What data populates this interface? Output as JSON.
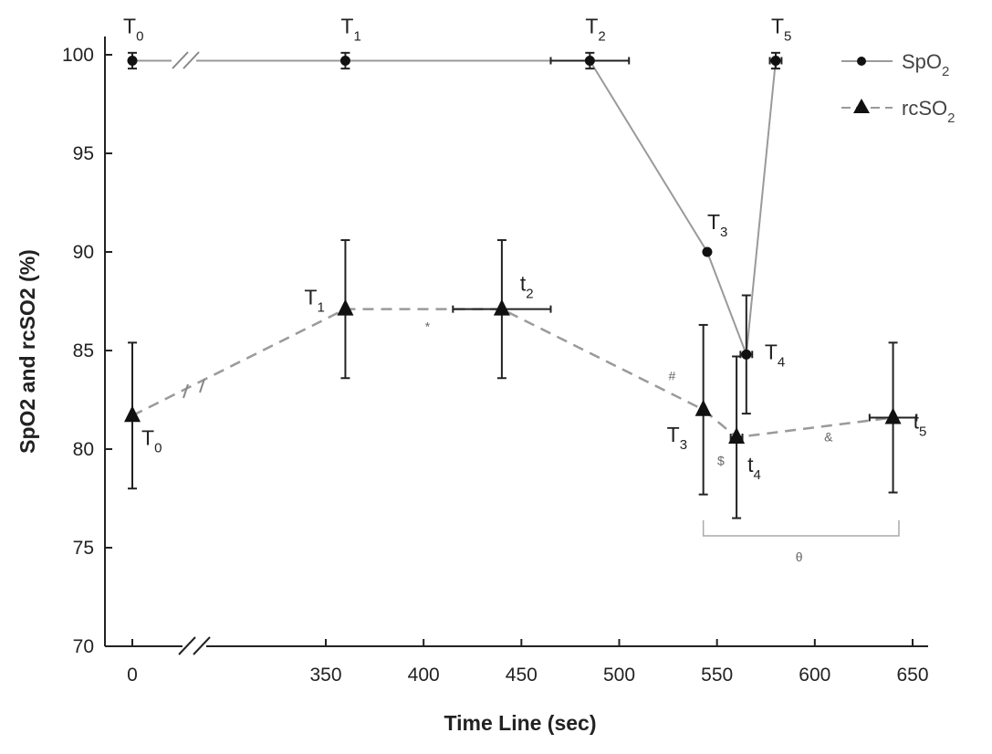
{
  "chart_data": {
    "type": "line",
    "xlabel": "Time Line (sec)",
    "ylabel": "SpO2 and rcSO2 (%)",
    "ylim": [
      70,
      100
    ],
    "xlim": [
      0,
      650
    ],
    "x_axis_break": "between 0 and 350",
    "y_ticks": [
      70,
      75,
      80,
      85,
      90,
      95,
      100
    ],
    "x_ticks": [
      0,
      350,
      400,
      450,
      500,
      550,
      600,
      650
    ],
    "x_tick_labels": [
      "0",
      "350",
      "400",
      "450",
      "500",
      "550",
      "600",
      "650"
    ],
    "legend_position": "top-right",
    "series": [
      {
        "name": "SpO2",
        "marker": "circle",
        "line_style": "solid",
        "color": "#9a9a9a",
        "points": [
          {
            "label": "T0",
            "x": 0,
            "y": 99.7,
            "y_err": 0.4,
            "x_err": 0
          },
          {
            "label": "T1",
            "x": 360,
            "y": 99.7,
            "y_err": 0.4,
            "x_err": 0
          },
          {
            "label": "T2",
            "x": 485,
            "y": 99.7,
            "y_err": 0.4,
            "x_err": 20
          },
          {
            "label": "T3",
            "x": 545,
            "y": 90.0,
            "y_err": 0,
            "x_err": 0
          },
          {
            "label": "T4",
            "x": 565,
            "y": 84.8,
            "y_err": 3.0,
            "x_err": 3
          },
          {
            "label": "T5",
            "x": 580,
            "y": 99.7,
            "y_err": 0.4,
            "x_err": 3
          }
        ]
      },
      {
        "name": "rcSO2",
        "marker": "triangle",
        "line_style": "dashed",
        "color": "#9a9a9a",
        "points": [
          {
            "label": "T0",
            "x": 0,
            "y": 81.7,
            "y_err": 3.7,
            "x_err": 0
          },
          {
            "label": "T1",
            "x": 360,
            "y": 87.1,
            "y_err": 3.5,
            "x_err": 0
          },
          {
            "label": "t2",
            "x": 440,
            "y": 87.1,
            "y_err": 3.5,
            "x_err": 25
          },
          {
            "label": "T3",
            "x": 543,
            "y": 82.0,
            "y_err": 4.3,
            "x_err": 0
          },
          {
            "label": "t4",
            "x": 560,
            "y": 80.6,
            "y_err": 4.1,
            "x_err": 3
          },
          {
            "label": "t5",
            "x": 640,
            "y": 81.6,
            "y_err": 3.8,
            "x_err": 12
          }
        ]
      }
    ],
    "annotations": [
      {
        "text": "*",
        "x": 402,
        "y": 86.0
      },
      {
        "text": "#",
        "x": 527,
        "y": 83.5
      },
      {
        "text": "$",
        "x": 552,
        "y": 79.2
      },
      {
        "text": "&",
        "x": 607,
        "y": 80.4
      },
      {
        "text": "θ",
        "x": 592,
        "y": 74.3
      }
    ],
    "bracket": {
      "x_start": 543,
      "x_end": 643,
      "y": 75.6
    }
  }
}
